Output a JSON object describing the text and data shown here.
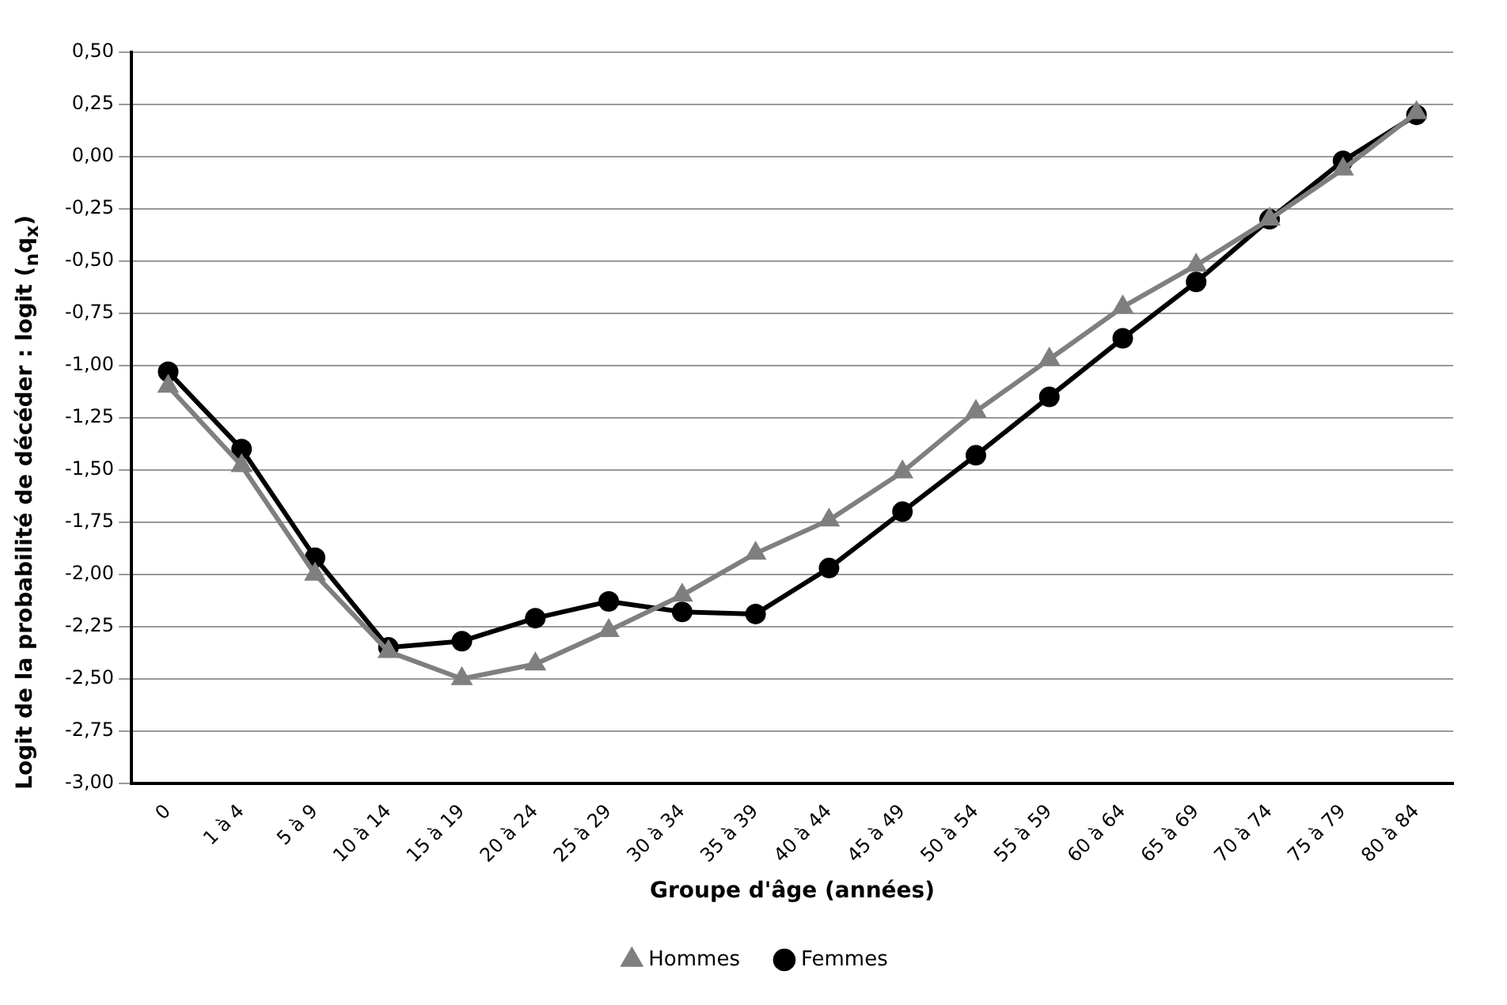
{
  "chart_data": {
    "type": "line",
    "xlabel": "Groupe d'âge (années)",
    "ylabel": "Logit de la probabilité de décéder : logit ($_{n}$q$_{x}$)",
    "categories": [
      "0",
      "1 à 4",
      "5 à 9",
      "10 à 14",
      "15 à 19",
      "20 à 24",
      "25 à 29",
      "30 à 34",
      "35 à 39",
      "40 à 44",
      "45 à 49",
      "50 à 54",
      "55 à 59",
      "60 à 64",
      "65 à 69",
      "70 à 74",
      "75 à 79",
      "80 à 84"
    ],
    "series": [
      {
        "name": "Hommes",
        "color": "#7f7f7f",
        "marker": "triangle",
        "values": [
          -1.1,
          -1.48,
          -2.0,
          -2.37,
          -2.5,
          -2.43,
          -2.27,
          -2.1,
          -1.9,
          -1.74,
          -1.51,
          -1.22,
          -0.97,
          -0.72,
          -0.52,
          -0.3,
          -0.06,
          0.21
        ]
      },
      {
        "name": "Femmes",
        "color": "#000000",
        "marker": "circle",
        "values": [
          -1.03,
          -1.4,
          -1.92,
          -2.35,
          -2.32,
          -2.21,
          -2.13,
          -2.18,
          -2.19,
          -1.97,
          -1.7,
          -1.43,
          -1.15,
          -0.87,
          -0.6,
          -0.3,
          -0.02,
          0.2
        ]
      }
    ],
    "ylim": [
      -3,
      0.5
    ],
    "yticks": [
      {
        "value": 0.5,
        "label": "0,50"
      },
      {
        "value": 0.25,
        "label": "0,25"
      },
      {
        "value": 0,
        "label": "0,00"
      },
      {
        "value": -0.25,
        "label": "-0,25"
      },
      {
        "value": -0.5,
        "label": "-0,50"
      },
      {
        "value": -0.75,
        "label": "-0,75"
      },
      {
        "value": -1,
        "label": "-1,00"
      },
      {
        "value": -1.25,
        "label": "-1,25"
      },
      {
        "value": -1.5,
        "label": "-1,50"
      },
      {
        "value": -1.75,
        "label": "-1,75"
      },
      {
        "value": -2,
        "label": "-2,00"
      },
      {
        "value": -2.25,
        "label": "-2,25"
      },
      {
        "value": -2.5,
        "label": "-2,50"
      },
      {
        "value": -2.75,
        "label": "-2,75"
      },
      {
        "value": -3,
        "label": "-3,00"
      }
    ],
    "grid": "y",
    "legend": "bottom",
    "line_style": "solid"
  }
}
